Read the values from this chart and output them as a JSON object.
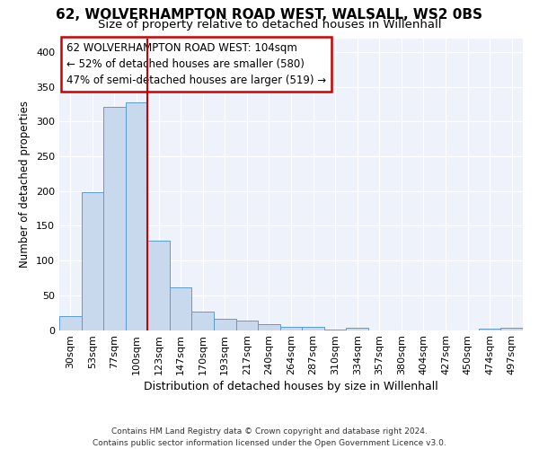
{
  "title1": "62, WOLVERHAMPTON ROAD WEST, WALSALL, WS2 0BS",
  "title2": "Size of property relative to detached houses in Willenhall",
  "xlabel": "Distribution of detached houses by size in Willenhall",
  "ylabel": "Number of detached properties",
  "bar_labels": [
    "30sqm",
    "53sqm",
    "77sqm",
    "100sqm",
    "123sqm",
    "147sqm",
    "170sqm",
    "193sqm",
    "217sqm",
    "240sqm",
    "264sqm",
    "287sqm",
    "310sqm",
    "334sqm",
    "357sqm",
    "380sqm",
    "404sqm",
    "427sqm",
    "450sqm",
    "474sqm",
    "497sqm"
  ],
  "bar_values": [
    20,
    198,
    321,
    328,
    128,
    62,
    26,
    16,
    14,
    8,
    5,
    4,
    1,
    3,
    0,
    0,
    0,
    0,
    0,
    2,
    3
  ],
  "bar_color": "#c8d9ee",
  "bar_edge_color": "#5b9bd5",
  "vline_color": "#cc0000",
  "annotation_box_text": "62 WOLVERHAMPTON ROAD WEST: 104sqm\n← 52% of detached houses are smaller (580)\n47% of semi-detached houses are larger (519) →",
  "ylim": [
    0,
    420
  ],
  "yticks": [
    0,
    50,
    100,
    150,
    200,
    250,
    300,
    350,
    400
  ],
  "background_color": "#eef2fa",
  "footer": "Contains HM Land Registry data © Crown copyright and database right 2024.\nContains public sector information licensed under the Open Government Licence v3.0.",
  "title1_fontsize": 11,
  "title2_fontsize": 9.5,
  "xlabel_fontsize": 9,
  "ylabel_fontsize": 8.5,
  "tick_fontsize": 8,
  "annotation_fontsize": 8.5,
  "footer_fontsize": 6.5
}
